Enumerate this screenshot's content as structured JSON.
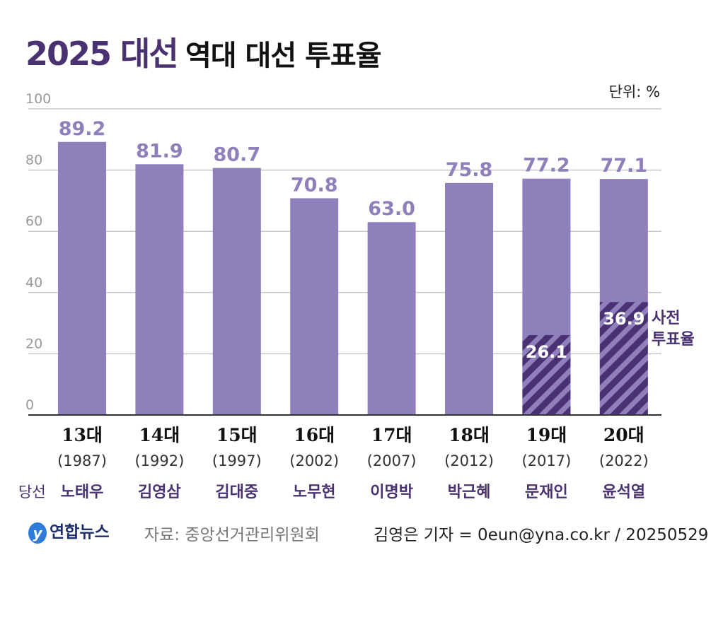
{
  "header": {
    "title_main": "2025 대선",
    "title_sub": "역대 대선 투표율",
    "unit": "단위: %"
  },
  "chart_data": {
    "type": "bar",
    "title": "역대 대선 투표율",
    "ylim": [
      0,
      100
    ],
    "yticks": [
      0,
      20,
      40,
      60,
      80,
      100
    ],
    "grid": true,
    "categories": [
      "13대",
      "14대",
      "15대",
      "16대",
      "17대",
      "18대",
      "19대",
      "20대"
    ],
    "years": [
      "(1987)",
      "(1992)",
      "(1997)",
      "(2002)",
      "(2007)",
      "(2012)",
      "(2017)",
      "(2022)"
    ],
    "winner_label": "당선",
    "winners": [
      "노태우",
      "김영삼",
      "김대중",
      "노무현",
      "이명박",
      "박근혜",
      "문재인",
      "윤석열"
    ],
    "series": [
      {
        "values": [
          89.2,
          81.9,
          80.7,
          70.8,
          63.0,
          75.8,
          77.2,
          77.1
        ],
        "labels": [
          "89.2",
          "81.9",
          "80.7",
          "70.8",
          "63.0",
          "75.8",
          "77.2",
          "77.1"
        ],
        "color": "#8f7fbb"
      },
      {
        "name": "사전 투표율",
        "values": [
          null,
          null,
          null,
          null,
          null,
          null,
          26.1,
          36.9
        ],
        "labels": [
          "",
          "",
          "",
          "",
          "",
          "",
          "26.1",
          "36.9"
        ],
        "color": "#4a3272",
        "pattern": "hatched"
      }
    ],
    "annotation": [
      "사전",
      "투표율"
    ]
  },
  "footer": {
    "logo": "연합뉴스",
    "source": "자료: 중앙선거관리위원회",
    "credit": "김영은 기자 = 0eun@yna.co.kr / 20250529"
  }
}
